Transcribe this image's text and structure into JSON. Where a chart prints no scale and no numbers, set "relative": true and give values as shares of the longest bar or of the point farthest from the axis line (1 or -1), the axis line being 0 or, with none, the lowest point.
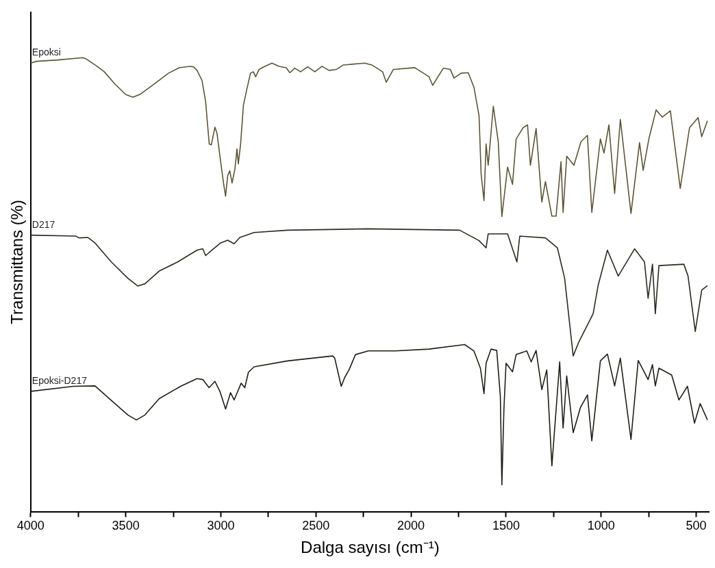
{
  "chart_data": {
    "type": "line",
    "relative": true,
    "xlabel": "Dalga sayısı (cm⁻¹)",
    "ylabel": "Transmittans (%)",
    "xlim": [
      4000,
      430
    ],
    "xticks": [
      4000,
      {
        "value": 3750,
        "label": null
      },
      3500,
      {
        "value": 3250,
        "label": null
      },
      3000,
      {
        "value": 2750,
        "label": null
      },
      2500,
      {
        "value": 2250,
        "label": null
      },
      2000,
      {
        "value": 1750,
        "label": null
      },
      1500,
      {
        "value": 1250,
        "label": null
      },
      1000,
      {
        "value": 750,
        "label": null
      },
      500
    ],
    "grid": false,
    "legend": false,
    "marker": "none",
    "line_style": "solid",
    "series": [
      {
        "name": "Epoksi",
        "color": "#5b5436",
        "x": [
          4000,
          3970,
          3857,
          3726,
          3707,
          3651,
          3613,
          3557,
          3501,
          3463,
          3426,
          3351,
          3275,
          3219,
          3163,
          3144,
          3125,
          3099,
          3080,
          3069,
          3061,
          3050,
          3031,
          3020,
          3001,
          2986,
          2975,
          2964,
          2953,
          2941,
          2926,
          2915,
          2908,
          2896,
          2881,
          2863,
          2844,
          2829,
          2817,
          2799,
          2769,
          2731,
          2694,
          2656,
          2637,
          2611,
          2581,
          2543,
          2506,
          2468,
          2431,
          2393,
          2356,
          2243,
          2206,
          2149,
          2130,
          2093,
          1980,
          1905,
          1886,
          1830,
          1793,
          1774,
          1736,
          1699,
          1669,
          1642,
          1631,
          1616,
          1605,
          1594,
          1567,
          1541,
          1522,
          1492,
          1466,
          1447,
          1410,
          1387,
          1372,
          1342,
          1312,
          1293,
          1259,
          1237,
          1211,
          1200,
          1181,
          1143,
          1106,
          1072,
          1049,
          1004,
          985,
          959,
          929,
          899,
          843,
          798,
          779,
          749,
          711,
          678,
          636,
          584,
          535,
          490,
          471,
          441
        ],
        "values": [
          0.988,
          0.992,
          0.995,
          1.0,
          0.997,
          0.981,
          0.969,
          0.942,
          0.919,
          0.913,
          0.919,
          0.942,
          0.966,
          0.978,
          0.981,
          0.98,
          0.972,
          0.95,
          0.903,
          0.849,
          0.81,
          0.808,
          0.847,
          0.833,
          0.771,
          0.724,
          0.695,
          0.74,
          0.751,
          0.724,
          0.755,
          0.799,
          0.766,
          0.81,
          0.896,
          0.931,
          0.966,
          0.969,
          0.958,
          0.974,
          0.981,
          0.988,
          0.981,
          0.978,
          0.967,
          0.977,
          0.969,
          0.98,
          0.969,
          0.981,
          0.972,
          0.974,
          0.984,
          0.988,
          0.984,
          0.969,
          0.946,
          0.974,
          0.978,
          0.958,
          0.939,
          0.977,
          0.974,
          0.955,
          0.966,
          0.967,
          0.935,
          0.872,
          0.743,
          0.685,
          0.81,
          0.763,
          0.893,
          0.815,
          0.65,
          0.759,
          0.721,
          0.821,
          0.846,
          0.852,
          0.763,
          0.844,
          0.682,
          0.727,
          0.651,
          0.651,
          0.771,
          0.659,
          0.783,
          0.763,
          0.815,
          0.829,
          0.659,
          0.821,
          0.79,
          0.852,
          0.701,
          0.864,
          0.657,
          0.813,
          0.752,
          0.821,
          0.885,
          0.869,
          0.883,
          0.712,
          0.846,
          0.868,
          0.826,
          0.861
        ]
      },
      {
        "name": "D217",
        "color": "#2a2a1e",
        "x": [
          4000,
          3763,
          3745,
          3700,
          3662,
          3576,
          3489,
          3437,
          3399,
          3324,
          3227,
          3125,
          3095,
          3080,
          3058,
          3001,
          2964,
          2930,
          2900,
          2825,
          2649,
          2224,
          1744,
          1642,
          1605,
          1594,
          1492,
          1443,
          1428,
          1293,
          1230,
          1192,
          1147,
          1117,
          1042,
          1016,
          967,
          910,
          824,
          772,
          753,
          730,
          715,
          696,
          565,
          543,
          505,
          471,
          441
        ],
        "values": [
          0.609,
          0.607,
          0.603,
          0.604,
          0.592,
          0.55,
          0.514,
          0.497,
          0.502,
          0.53,
          0.55,
          0.576,
          0.579,
          0.564,
          0.572,
          0.592,
          0.598,
          0.59,
          0.604,
          0.615,
          0.62,
          0.623,
          0.62,
          0.597,
          0.581,
          0.612,
          0.612,
          0.55,
          0.607,
          0.603,
          0.581,
          0.514,
          0.343,
          0.374,
          0.436,
          0.498,
          0.576,
          0.519,
          0.579,
          0.55,
          0.47,
          0.545,
          0.436,
          0.542,
          0.545,
          0.519,
          0.397,
          0.488,
          0.498
        ]
      },
      {
        "name": "Epoksi-D217",
        "color": "#1e1e16",
        "x": [
          4000,
          3775,
          3662,
          3576,
          3489,
          3444,
          3399,
          3324,
          3212,
          3125,
          3095,
          3062,
          3031,
          3005,
          2975,
          2949,
          2930,
          2893,
          2874,
          2855,
          2825,
          2649,
          2412,
          2401,
          2367,
          2348,
          2326,
          2292,
          2224,
          2082,
          1905,
          1718,
          1669,
          1635,
          1616,
          1605,
          1579,
          1549,
          1530,
          1522,
          1511,
          1500,
          1466,
          1447,
          1391,
          1368,
          1342,
          1312,
          1286,
          1259,
          1218,
          1200,
          1181,
          1147,
          1109,
          1072,
          1049,
          1004,
          967,
          929,
          899,
          843,
          805,
          753,
          730,
          715,
          696,
          629,
          591,
          546,
          509,
          479,
          441
        ],
        "values": [
          0.265,
          0.276,
          0.277,
          0.245,
          0.213,
          0.202,
          0.213,
          0.249,
          0.276,
          0.293,
          0.291,
          0.273,
          0.287,
          0.265,
          0.226,
          0.262,
          0.246,
          0.283,
          0.273,
          0.307,
          0.319,
          0.332,
          0.343,
          0.338,
          0.276,
          0.296,
          0.312,
          0.346,
          0.354,
          0.354,
          0.358,
          0.368,
          0.354,
          0.316,
          0.26,
          0.327,
          0.358,
          0.355,
          0.254,
          0.059,
          0.229,
          0.327,
          0.308,
          0.346,
          0.354,
          0.33,
          0.355,
          0.269,
          0.312,
          0.101,
          0.33,
          0.184,
          0.299,
          0.174,
          0.229,
          0.257,
          0.156,
          0.332,
          0.347,
          0.277,
          0.338,
          0.159,
          0.333,
          0.291,
          0.324,
          0.277,
          0.316,
          0.301,
          0.246,
          0.276,
          0.195,
          0.238,
          0.202
        ]
      }
    ]
  }
}
